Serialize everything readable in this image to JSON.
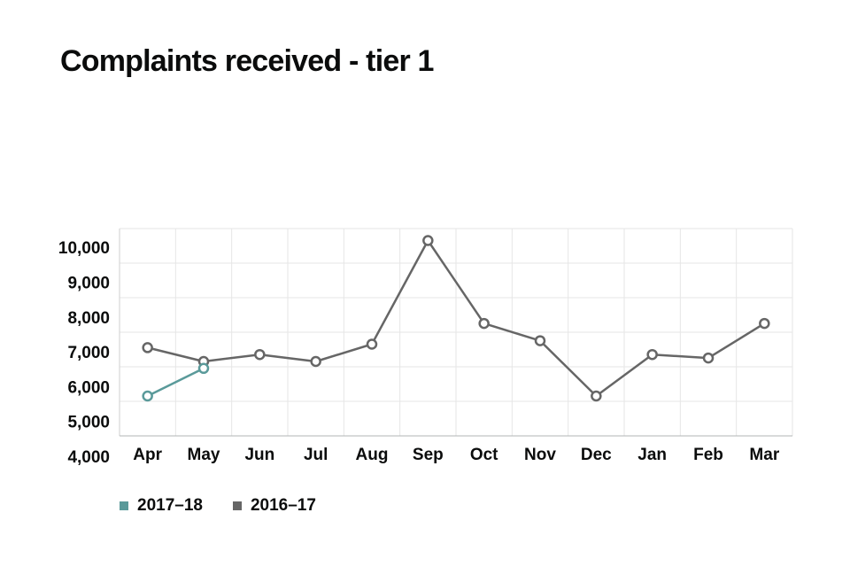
{
  "chart_data": {
    "type": "line",
    "title": "Complaints received - tier 1",
    "xlabel": "",
    "ylabel": "",
    "categories": [
      "Apr",
      "May",
      "Jun",
      "Jul",
      "Aug",
      "Sep",
      "Oct",
      "Nov",
      "Dec",
      "Jan",
      "Feb",
      "Mar"
    ],
    "yticks": [
      "4,000",
      "5,000",
      "6,000",
      "7,000",
      "8,000",
      "9,000",
      "10,000"
    ],
    "ylim": [
      4000,
      10000
    ],
    "grid": true,
    "legend_position": "bottom-left",
    "series": [
      {
        "name": "2016–17",
        "color": "#666666",
        "values": [
          6400,
          6000,
          6200,
          6000,
          6500,
          9500,
          7100,
          6600,
          5000,
          6200,
          6100,
          7100
        ]
      },
      {
        "name": "2017–18",
        "color": "#5a9a9a",
        "values": [
          5000,
          5800,
          null,
          null,
          null,
          null,
          null,
          null,
          null,
          null,
          null,
          null
        ]
      }
    ]
  }
}
